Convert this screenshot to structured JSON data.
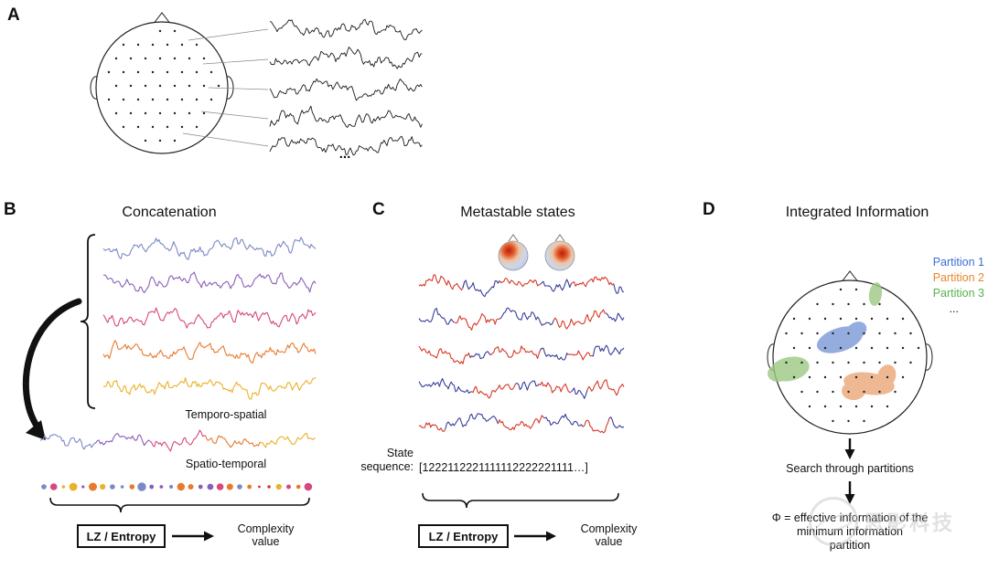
{
  "panel_a": {
    "label": "A",
    "ellipsis": "..."
  },
  "panel_b": {
    "label": "B",
    "title": "Concatenation",
    "trace_colors": [
      "#7b89c4",
      "#8a5fb8",
      "#d6487f",
      "#e87a2e",
      "#eab228"
    ],
    "dot_colors": [
      "#7b89c4",
      "#8a5fb8",
      "#d6487f",
      "#e87a2e",
      "#eab228",
      "#d63a28"
    ],
    "temporo_spatial_label": "Temporo-spatial",
    "spatio_temporal_label": "Spatio-temporal",
    "lz_entropy_label": "LZ / Entropy",
    "complexity_line1": "Complexity",
    "complexity_line2": "value"
  },
  "panel_c": {
    "label": "C",
    "title": "Metastable states",
    "state_colors": [
      "#d63a28",
      "#3a3f99"
    ],
    "state_label_line1": "State",
    "state_label_line2": "sequence:",
    "state_sequence": "[1222112221111112222221111…]",
    "lz_entropy_label": "LZ / Entropy",
    "complexity_line1": "Complexity",
    "complexity_line2": "value"
  },
  "panel_d": {
    "label": "D",
    "title": "Integrated Information",
    "legend": [
      {
        "label": "Partition 1",
        "color": "#3d6cd6"
      },
      {
        "label": "Partition 2",
        "color": "#e8862c"
      },
      {
        "label": "Partition 3",
        "color": "#55b24b"
      }
    ],
    "legend_more": "...",
    "blob_colors": {
      "green": "#9cc983",
      "blue": "#7b99d6",
      "orange": "#eaa777"
    },
    "search_label": "Search through partitions",
    "phi_line1": "Φ = effective information of the",
    "phi_line2": "minimum information",
    "phi_line3": "partition"
  },
  "watermark": {
    "text": "思影科技"
  }
}
